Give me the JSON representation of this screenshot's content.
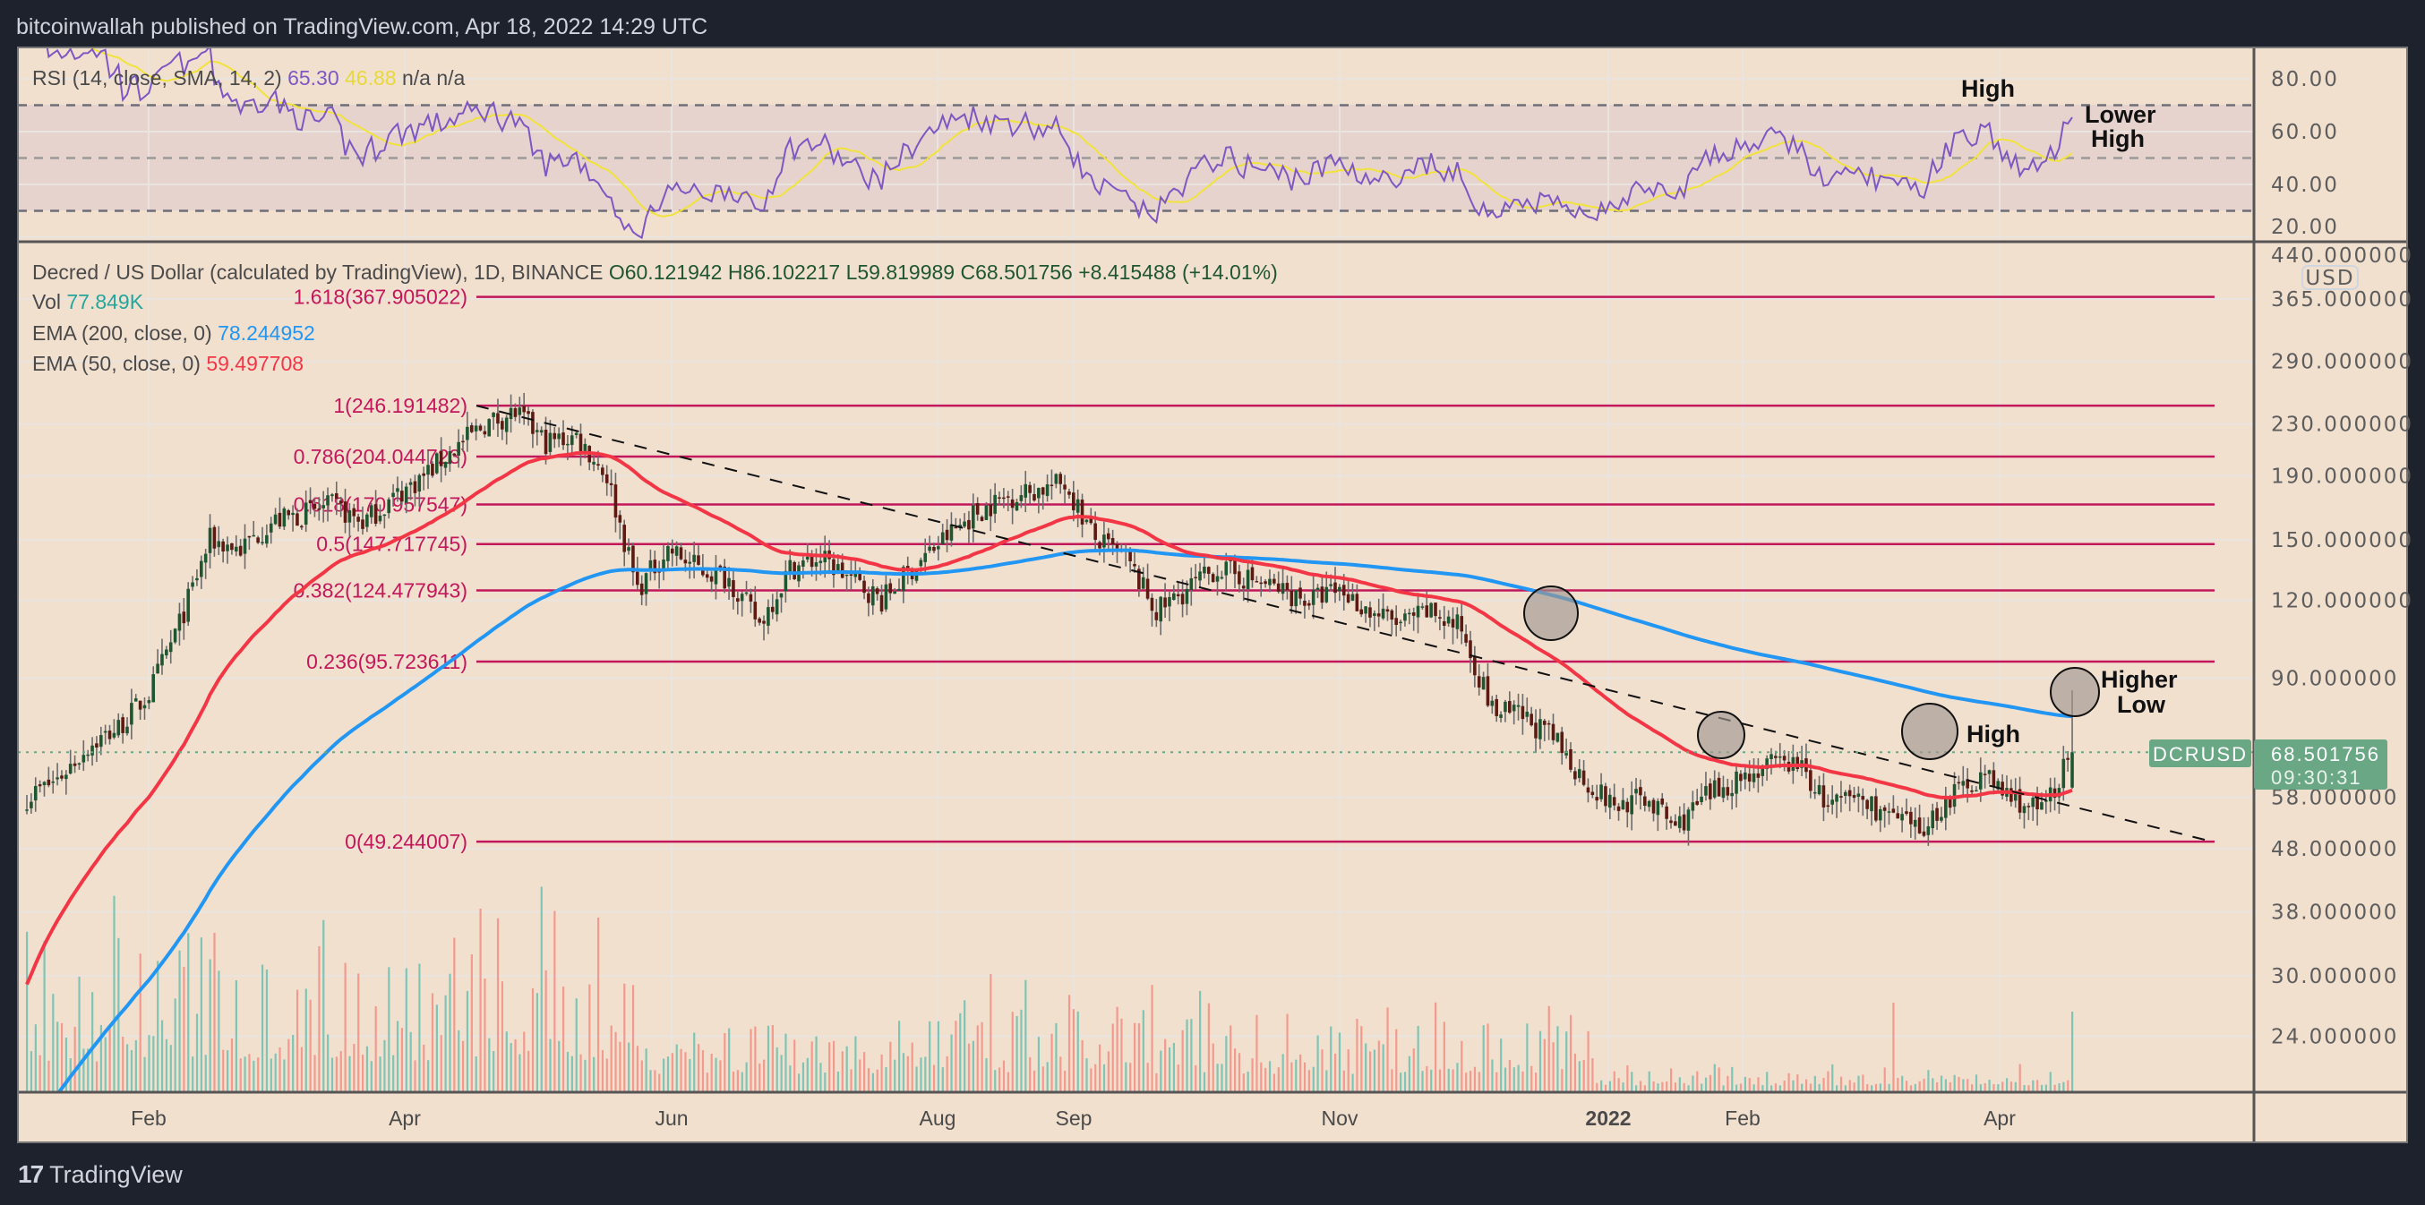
{
  "header": {
    "title": "bitcoinwallah published on TradingView.com, Apr 18, 2022 14:29 UTC"
  },
  "footer": {
    "logo_text": "TradingView",
    "logo_mark": "17"
  },
  "rsi_legend": {
    "name": "RSI (14, close, SMA, 14, 2)",
    "rsi": "65.30",
    "sma": "46.88",
    "na1": "n/a",
    "na2": "n/a"
  },
  "main_legend": {
    "symbol": "Decred / US Dollar (calculated by TradingView), 1D, BINANCE",
    "open": "O60.121942",
    "high": "H86.102217",
    "low": "L59.819989",
    "close": "C68.501756",
    "change": "+8.415488 (+14.01%)",
    "vol_label": "Vol",
    "vol_value": "77.849K",
    "ema200_label": "EMA (200, close, 0)",
    "ema200_value": "78.244952",
    "ema50_label": "EMA (50, close, 0)",
    "ema50_value": "59.497708"
  },
  "colors": {
    "bg": "#f2e0cf",
    "up": "#1e5631",
    "down": "#5c1a12",
    "ema50": "#f23645",
    "ema200": "#2196f3",
    "rsi": "#7e57c2",
    "rsi_sma": "#f2e23c",
    "fib": "#c2185b",
    "vol_up": "#7fc4b4",
    "vol_down": "#f29a8e",
    "price_tag": "#6aa785"
  },
  "price_axis": {
    "unit": "USD",
    "ticks": [
      "440.000000",
      "365.000000",
      "290.000000",
      "230.000000",
      "190.000000",
      "150.000000",
      "120.000000",
      "90.000000",
      "58.000000",
      "48.000000",
      "38.000000",
      "30.000000",
      "24.000000"
    ]
  },
  "rsi_axis": {
    "ticks": [
      "80.00",
      "60.00",
      "40.00",
      "20.00"
    ]
  },
  "time_axis": {
    "ticks": [
      "Feb",
      "Apr",
      "Jun",
      "Aug",
      "Sep",
      "Nov",
      "2022",
      "Feb",
      "Apr"
    ]
  },
  "price_tag": {
    "symbol": "DCRUSD",
    "price": "68.501756",
    "countdown": "09:30:31"
  },
  "fib_levels": [
    {
      "label": "1.618(367.905022)",
      "price": 367.905022
    },
    {
      "label": "1(246.191482)",
      "price": 246.191482
    },
    {
      "label": "0.786(204.044723)",
      "price": 204.044723
    },
    {
      "label": "0.618(170.957547)",
      "price": 170.957547
    },
    {
      "label": "0.5(147.717745)",
      "price": 147.717745
    },
    {
      "label": "0.382(124.477943)",
      "price": 124.477943
    },
    {
      "label": "0.236(95.723611)",
      "price": 95.723611
    },
    {
      "label": "0(49.244007)",
      "price": 49.244007
    }
  ],
  "annotations": {
    "rsi_high": "High",
    "rsi_lower": "Lower",
    "rsi_lower2": "High",
    "price_high": "High",
    "higher": "Higher",
    "low": "Low"
  },
  "chart_data": {
    "type": "candlestick",
    "title": "Decred / US Dollar, 1D, BINANCE",
    "x_start": "2021-01-04",
    "interval": "weekly closes (approx.)",
    "weekly_close": [
      58,
      62,
      70,
      75,
      85,
      110,
      150,
      145,
      160,
      165,
      170,
      160,
      175,
      190,
      210,
      230,
      240,
      215,
      220,
      190,
      125,
      145,
      135,
      130,
      110,
      135,
      140,
      130,
      120,
      135,
      150,
      165,
      175,
      180,
      185,
      150,
      140,
      115,
      125,
      135,
      130,
      125,
      120,
      125,
      115,
      110,
      115,
      108,
      80,
      78,
      72,
      62,
      56,
      58,
      52,
      58,
      62,
      65,
      66,
      56,
      58,
      54,
      51,
      58,
      63,
      58,
      55,
      68.501756
    ],
    "last_candle": {
      "open": 60.121942,
      "high": 86.102217,
      "low": 59.819989,
      "close": 68.501756
    },
    "ylim": [
      20,
      440
    ],
    "yscale": "log",
    "rsi_levels": [
      70,
      50,
      30
    ],
    "rsi_ylim": [
      15,
      90
    ]
  }
}
